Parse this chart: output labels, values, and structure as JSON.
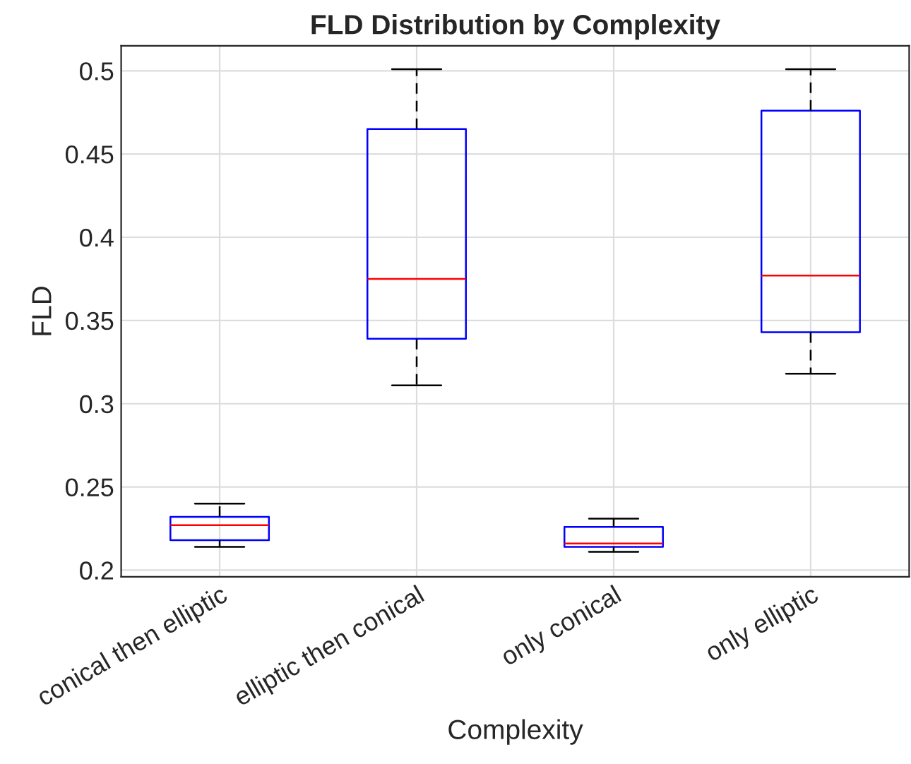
{
  "chart_data": {
    "type": "box",
    "title": "FLD Distribution by Complexity",
    "xlabel": "Complexity",
    "ylabel": "FLD",
    "categories": [
      "conical then elliptic",
      "elliptic then conical",
      "only conical",
      "only elliptic"
    ],
    "boxes": [
      {
        "low": 0.214,
        "q1": 0.218,
        "median": 0.227,
        "q3": 0.232,
        "high": 0.24
      },
      {
        "low": 0.311,
        "q1": 0.339,
        "median": 0.375,
        "q3": 0.465,
        "high": 0.501
      },
      {
        "low": 0.211,
        "q1": 0.214,
        "median": 0.216,
        "q3": 0.226,
        "high": 0.231
      },
      {
        "low": 0.318,
        "q1": 0.343,
        "median": 0.377,
        "q3": 0.476,
        "high": 0.501
      }
    ],
    "color": "#0000ff",
    "ylim": [
      0.196,
      0.515
    ],
    "yticks": [
      {
        "value": 0.2,
        "label": "0.2"
      },
      {
        "value": 0.25,
        "label": "0.25"
      },
      {
        "value": 0.3,
        "label": "0.3"
      },
      {
        "value": 0.35,
        "label": "0.35"
      },
      {
        "value": 0.4,
        "label": "0.4"
      },
      {
        "value": 0.45,
        "label": "0.45"
      },
      {
        "value": 0.5,
        "label": "0.5"
      }
    ],
    "grid": true
  }
}
